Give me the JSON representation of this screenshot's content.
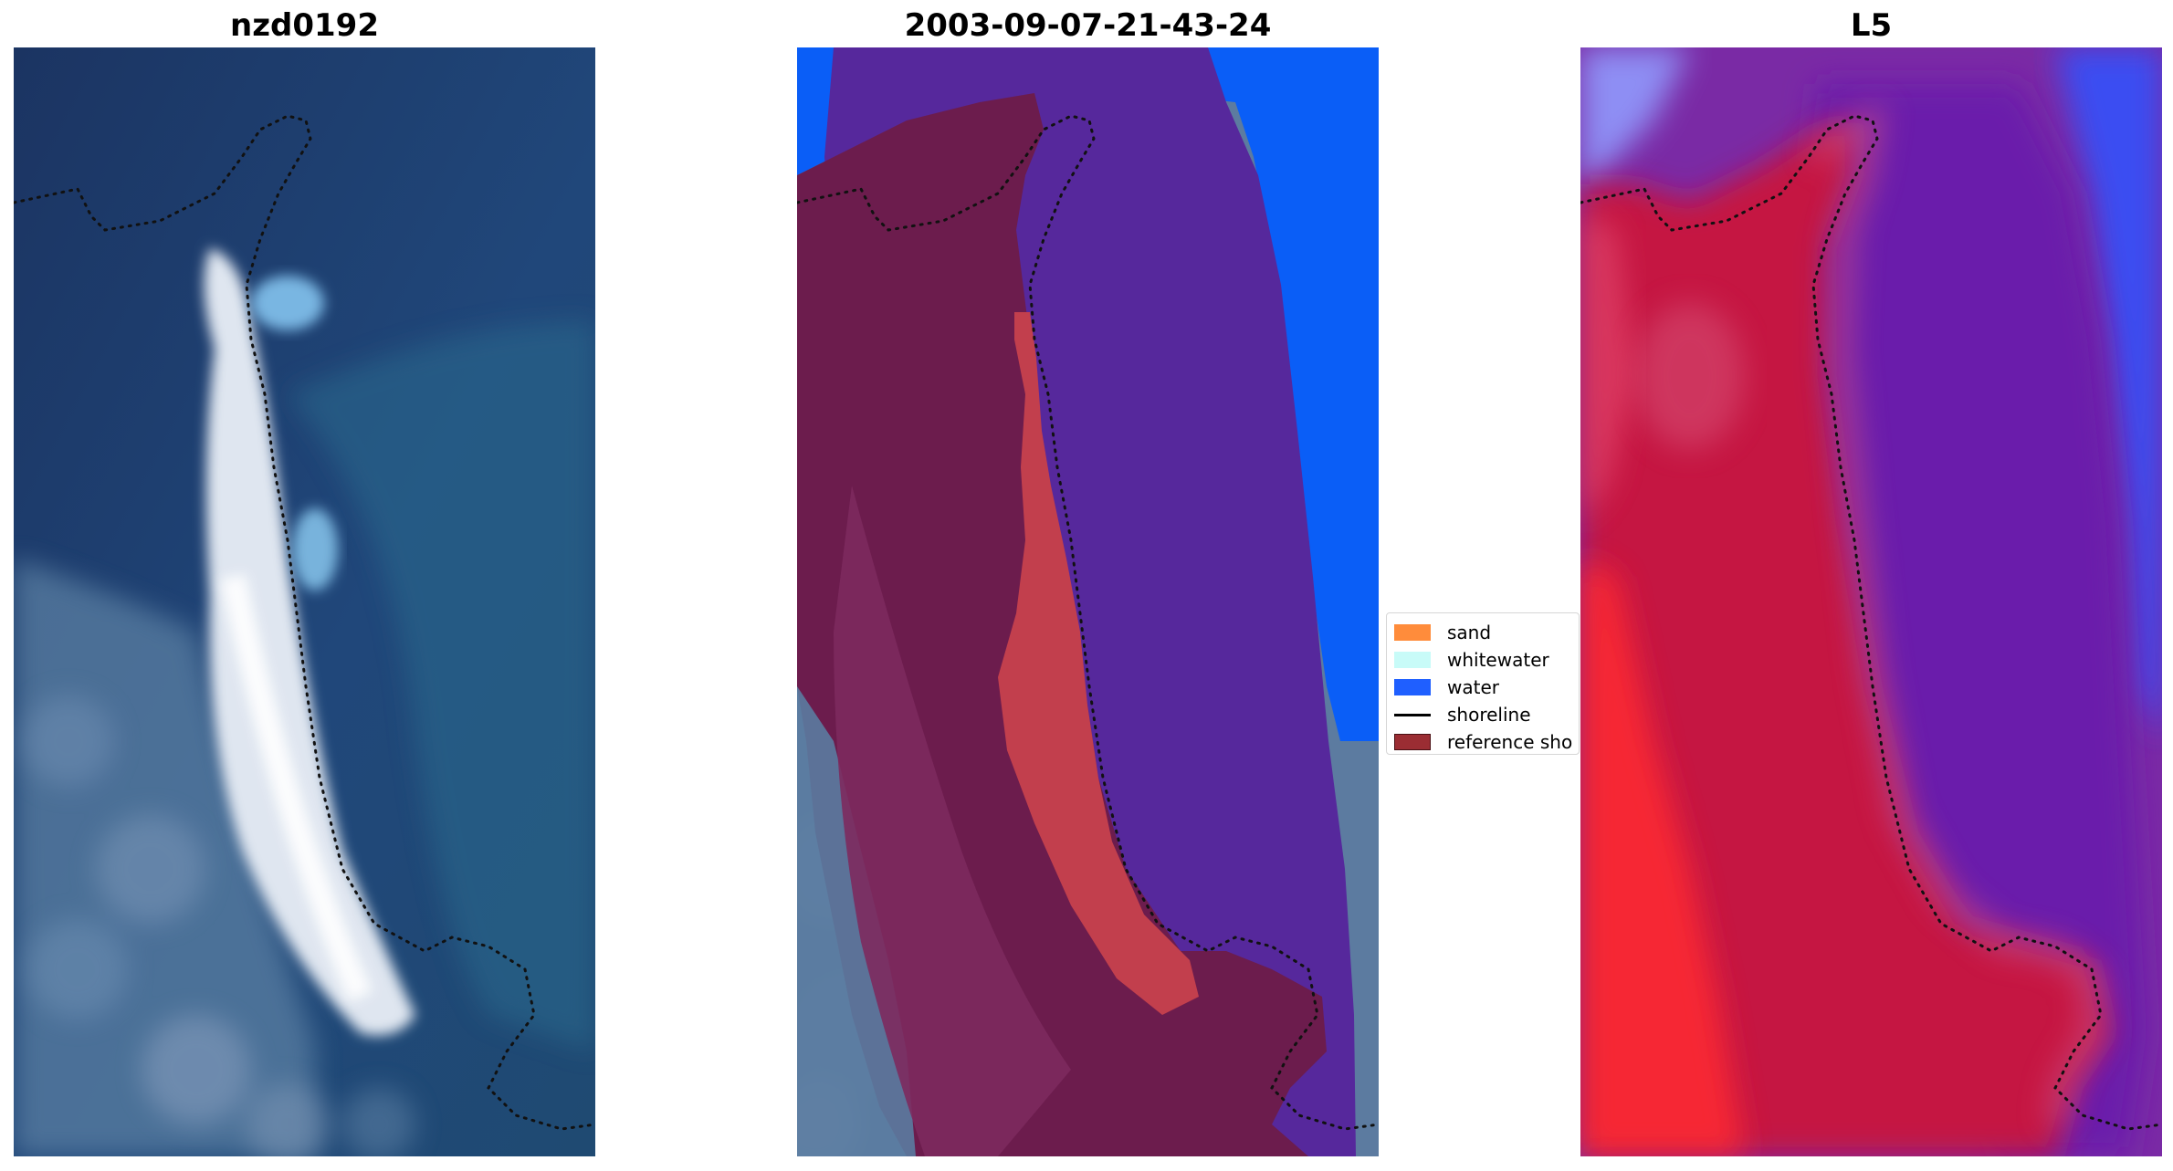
{
  "panels": [
    {
      "title": "nzd0192"
    },
    {
      "title": "2003-09-07-21-43-24"
    },
    {
      "title": "L5"
    }
  ],
  "legend": {
    "items": [
      {
        "label": "sand",
        "color": "#ff8c3b",
        "kind": "patch"
      },
      {
        "label": "whitewater",
        "color": "#c8fbf8",
        "kind": "patch"
      },
      {
        "label": "water",
        "color": "#1f5fff",
        "kind": "patch"
      },
      {
        "label": "shoreline",
        "color": "#000000",
        "kind": "line"
      },
      {
        "label": "reference sho",
        "color": "#9b2d33",
        "kind": "patch"
      }
    ]
  },
  "colors": {
    "ocean_dark": "#1c3760",
    "sand_class_overlay": "#c2404e",
    "water_class_bright": "#0860ff",
    "water_class_purple": "#55269b",
    "land_class_maroon": "#6a1a4a",
    "index_red": "#c8103c",
    "index_purple": "#6d1fa8",
    "index_blue": "#3d4ff2"
  }
}
